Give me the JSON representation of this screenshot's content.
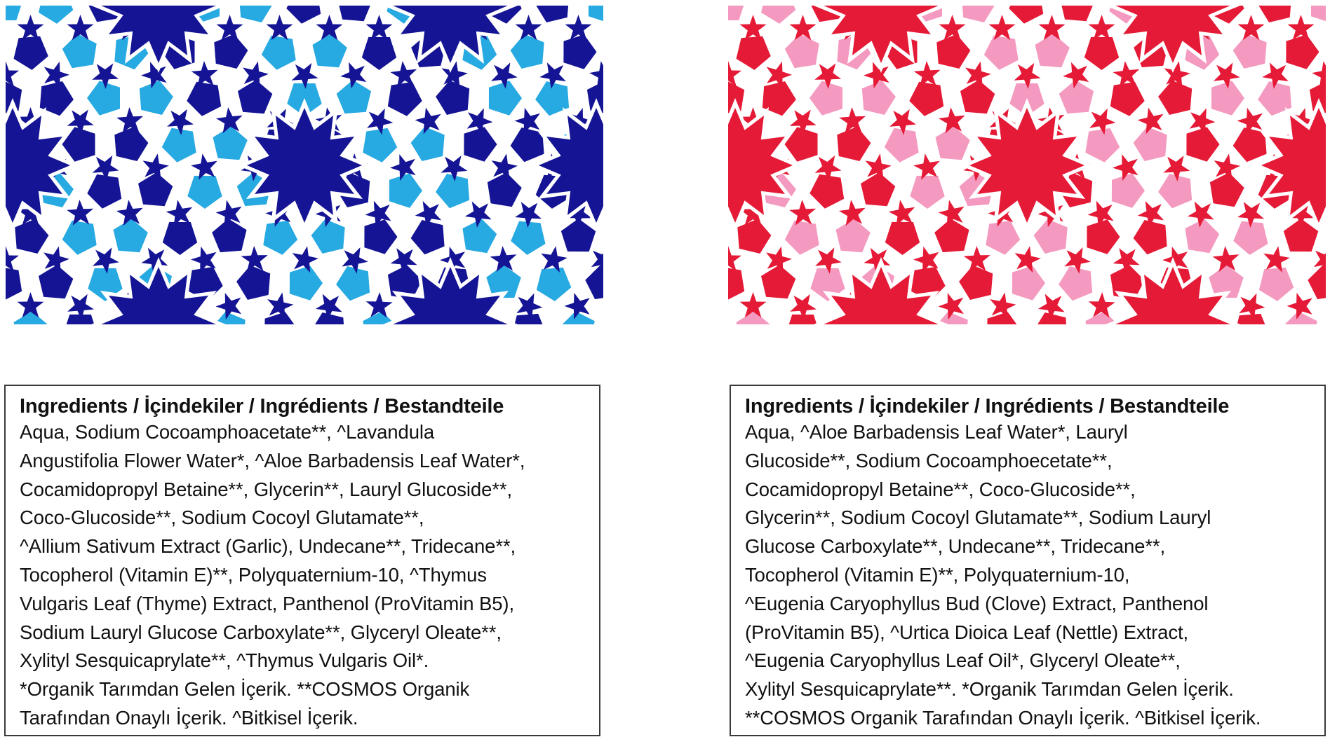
{
  "patterns": [
    {
      "name": "blue-pattern",
      "colors": {
        "dark": "#141494",
        "light": "#27a9e1",
        "line": "#ffffff"
      }
    },
    {
      "name": "red-pattern",
      "colors": {
        "dark": "#e51a37",
        "light": "#f49ac0",
        "line": "#ffffff"
      }
    }
  ],
  "panels": [
    {
      "heading": "Ingredients / İçindekiler / Ingrédients / Bestandteile",
      "lines": [
        "Aqua, Sodium Cocoamphoacetate**, ^Lavandula",
        "Angustifolia Flower Water*, ^Aloe Barbadensis Leaf Water*,",
        "Cocamidopropyl Betaine**, Glycerin**, Lauryl Glucoside**,",
        "Coco-Glucoside**, Sodium Cocoyl Glutamate**,",
        "^Allium Sativum Extract (Garlic), Undecane**, Tridecane**,",
        "Tocopherol (Vitamin E)**, Polyquaternium-10, ^Thymus",
        "Vulgaris Leaf (Thyme) Extract, Panthenol (ProVitamin B5),",
        "Sodium Lauryl Glucose Carboxylate**, Glyceryl Oleate**,",
        "Xylityl Sesquicaprylate**, ^Thymus Vulgaris Oil*.",
        "*Organik Tarımdan Gelen İçerik. **COSMOS Organik",
        "Tarafından Onaylı İçerik. ^Bitkisel İçerik."
      ]
    },
    {
      "heading": "Ingredients / İçindekiler / Ingrédients / Bestandteile",
      "lines": [
        "Aqua, ^Aloe Barbadensis Leaf Water*, Lauryl",
        "Glucoside**, Sodium Cocoamphoecetate**,",
        "Cocamidopropyl Betaine**, Coco-Glucoside**,",
        "Glycerin**,  Sodium Cocoyl Glutamate**, Sodium Lauryl",
        "Glucose Carboxylate**, Undecane**, Tridecane**,",
        "Tocopherol (Vitamin E)**, Polyquaternium-10,",
        "^Eugenia Caryophyllus Bud (Clove) Extract, Panthenol",
        "(ProVitamin B5), ^Urtica Dioica Leaf (Nettle) Extract,",
        "^Eugenia Caryophyllus Leaf Oil*, Glyceryl Oleate**,",
        "Xylityl Sesquicaprylate**. *Organik Tarımdan Gelen İçerik.",
        "**COSMOS Organik Tarafından Onaylı İçerik. ^Bitkisel İçerik."
      ]
    }
  ]
}
